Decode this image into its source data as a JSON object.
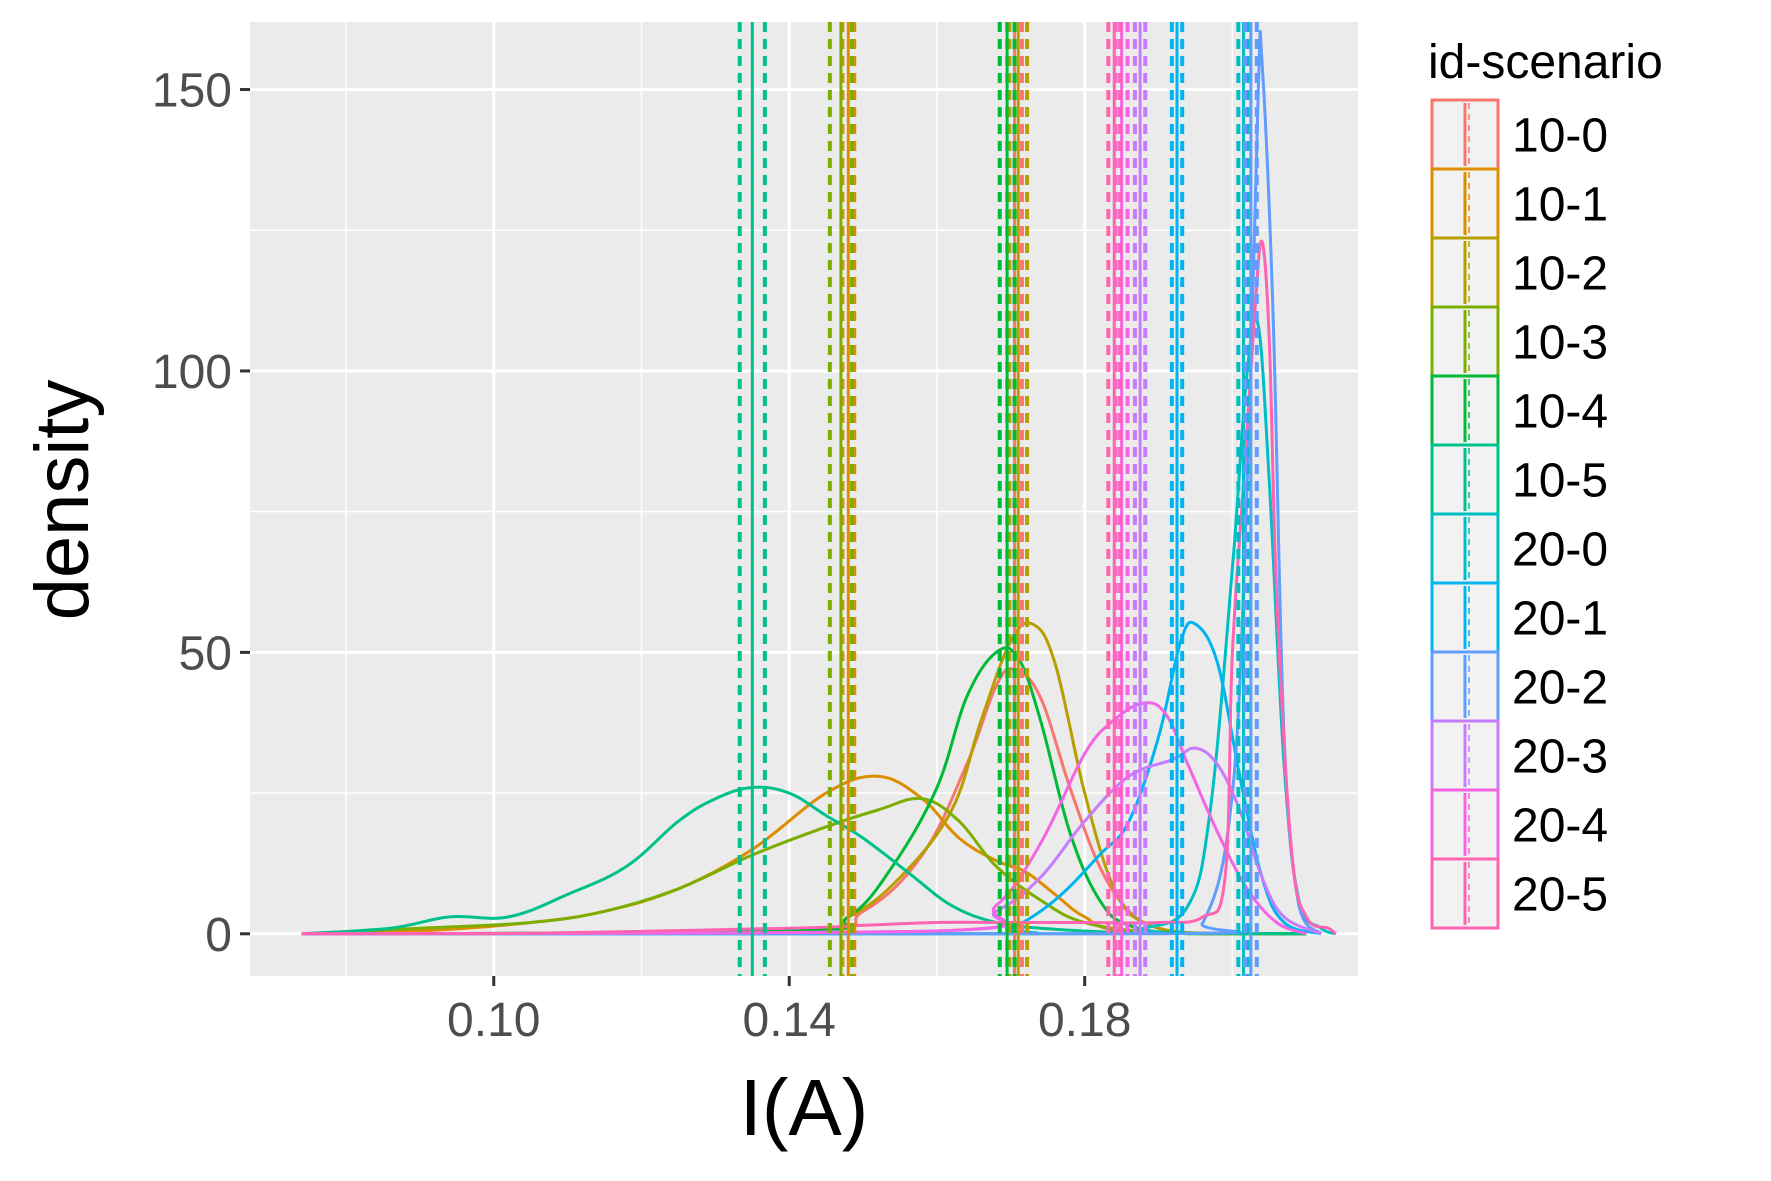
{
  "chart_data": {
    "type": "line",
    "subtype": "density",
    "xlabel": "I(A)",
    "ylabel": "density",
    "xlim": [
      0.067,
      0.217
    ],
    "ylim": [
      -7.5,
      162
    ],
    "x_ticks": [
      0.1,
      0.14,
      0.18
    ],
    "x_tick_labels": [
      "0.10",
      "0.14",
      "0.18"
    ],
    "y_ticks": [
      0,
      50,
      100,
      150
    ],
    "y_tick_labels": [
      "0",
      "50",
      "100",
      "150"
    ],
    "grid": true,
    "legend": {
      "title": "id-scenario",
      "position": "right"
    },
    "series": [
      {
        "name": "10-0",
        "color": "#F8766D",
        "mean": 0.1705,
        "ci": [
          0.1695,
          0.1715
        ],
        "points": [
          [
            0.074,
            0
          ],
          [
            0.14,
            0.5
          ],
          [
            0.15,
            4
          ],
          [
            0.158,
            14
          ],
          [
            0.164,
            30
          ],
          [
            0.168,
            44
          ],
          [
            0.1705,
            47
          ],
          [
            0.174,
            42
          ],
          [
            0.178,
            26
          ],
          [
            0.182,
            12
          ],
          [
            0.186,
            4
          ],
          [
            0.19,
            1
          ],
          [
            0.196,
            0
          ],
          [
            0.21,
            0
          ]
        ]
      },
      {
        "name": "10-1",
        "color": "#DE8C00",
        "mean": 0.148,
        "ci": [
          0.1472,
          0.1488
        ],
        "points": [
          [
            0.074,
            0
          ],
          [
            0.09,
            0.5
          ],
          [
            0.105,
            2
          ],
          [
            0.115,
            4
          ],
          [
            0.125,
            8
          ],
          [
            0.135,
            15
          ],
          [
            0.145,
            25
          ],
          [
            0.152,
            28
          ],
          [
            0.158,
            24
          ],
          [
            0.163,
            17
          ],
          [
            0.168,
            13
          ],
          [
            0.172,
            11
          ],
          [
            0.176,
            7
          ],
          [
            0.18,
            3
          ],
          [
            0.186,
            0.5
          ],
          [
            0.21,
            0
          ]
        ]
      },
      {
        "name": "10-2",
        "color": "#B79F00",
        "mean": 0.171,
        "ci": [
          0.1698,
          0.1722
        ],
        "points": [
          [
            0.074,
            0
          ],
          [
            0.14,
            0.5
          ],
          [
            0.148,
            3
          ],
          [
            0.155,
            10
          ],
          [
            0.162,
            22
          ],
          [
            0.166,
            38
          ],
          [
            0.17,
            52
          ],
          [
            0.173,
            55
          ],
          [
            0.176,
            48
          ],
          [
            0.18,
            25
          ],
          [
            0.184,
            8
          ],
          [
            0.188,
            2
          ],
          [
            0.196,
            0
          ],
          [
            0.21,
            0
          ]
        ]
      },
      {
        "name": "10-3",
        "color": "#7CAE00",
        "mean": 0.147,
        "ci": [
          0.1455,
          0.1485
        ],
        "points": [
          [
            0.074,
            0
          ],
          [
            0.09,
            1
          ],
          [
            0.105,
            2
          ],
          [
            0.115,
            4
          ],
          [
            0.125,
            8
          ],
          [
            0.135,
            14
          ],
          [
            0.145,
            19
          ],
          [
            0.152,
            22
          ],
          [
            0.158,
            24
          ],
          [
            0.163,
            20
          ],
          [
            0.168,
            12
          ],
          [
            0.174,
            6
          ],
          [
            0.18,
            2
          ],
          [
            0.19,
            0.3
          ],
          [
            0.21,
            0
          ]
        ]
      },
      {
        "name": "10-4",
        "color": "#00BA38",
        "mean": 0.1695,
        "ci": [
          0.1685,
          0.1705
        ],
        "points": [
          [
            0.074,
            0
          ],
          [
            0.14,
            0.5
          ],
          [
            0.148,
            3
          ],
          [
            0.154,
            12
          ],
          [
            0.16,
            26
          ],
          [
            0.164,
            42
          ],
          [
            0.168,
            50
          ],
          [
            0.171,
            49
          ],
          [
            0.174,
            38
          ],
          [
            0.178,
            18
          ],
          [
            0.182,
            6
          ],
          [
            0.186,
            1.5
          ],
          [
            0.194,
            0
          ],
          [
            0.21,
            0
          ]
        ]
      },
      {
        "name": "10-5",
        "color": "#00C08B",
        "mean": 0.135,
        "ci": [
          0.1333,
          0.1367
        ],
        "points": [
          [
            0.074,
            0
          ],
          [
            0.086,
            1
          ],
          [
            0.094,
            3
          ],
          [
            0.102,
            3
          ],
          [
            0.11,
            7
          ],
          [
            0.118,
            12
          ],
          [
            0.125,
            20
          ],
          [
            0.13,
            24
          ],
          [
            0.135,
            26
          ],
          [
            0.14,
            25
          ],
          [
            0.145,
            21
          ],
          [
            0.15,
            17
          ],
          [
            0.156,
            11
          ],
          [
            0.162,
            5
          ],
          [
            0.168,
            2
          ],
          [
            0.174,
            1
          ],
          [
            0.186,
            0.2
          ],
          [
            0.21,
            0
          ]
        ]
      },
      {
        "name": "20-0",
        "color": "#00BFC4",
        "mean": 0.2015,
        "ci": [
          0.2008,
          0.2022
        ],
        "points": [
          [
            0.074,
            0
          ],
          [
            0.18,
            0
          ],
          [
            0.188,
            1
          ],
          [
            0.194,
            5
          ],
          [
            0.197,
            22
          ],
          [
            0.2,
            65
          ],
          [
            0.202,
            100
          ],
          [
            0.2035,
            108
          ],
          [
            0.205,
            80
          ],
          [
            0.207,
            30
          ],
          [
            0.209,
            6
          ],
          [
            0.212,
            1
          ],
          [
            0.214,
            0
          ]
        ]
      },
      {
        "name": "20-1",
        "color": "#00B4F0",
        "mean": 0.1925,
        "ci": [
          0.1918,
          0.1932
        ],
        "points": [
          [
            0.074,
            0
          ],
          [
            0.165,
            0
          ],
          [
            0.17,
            1
          ],
          [
            0.176,
            6
          ],
          [
            0.182,
            14
          ],
          [
            0.186,
            20
          ],
          [
            0.19,
            35
          ],
          [
            0.193,
            52
          ],
          [
            0.195,
            55
          ],
          [
            0.198,
            48
          ],
          [
            0.201,
            28
          ],
          [
            0.204,
            10
          ],
          [
            0.207,
            2
          ],
          [
            0.212,
            0
          ]
        ]
      },
      {
        "name": "20-2",
        "color": "#619CFF",
        "mean": 0.2025,
        "ci": [
          0.2017,
          0.2033
        ],
        "points": [
          [
            0.074,
            0
          ],
          [
            0.19,
            0
          ],
          [
            0.196,
            2
          ],
          [
            0.2,
            25
          ],
          [
            0.202,
            80
          ],
          [
            0.2035,
            150
          ],
          [
            0.204,
            155
          ],
          [
            0.2055,
            110
          ],
          [
            0.207,
            35
          ],
          [
            0.209,
            5
          ],
          [
            0.212,
            0
          ]
        ]
      },
      {
        "name": "20-3",
        "color": "#C77CFF",
        "mean": 0.1875,
        "ci": [
          0.1868,
          0.1882
        ],
        "points": [
          [
            0.074,
            0
          ],
          [
            0.16,
            0.5
          ],
          [
            0.168,
            4
          ],
          [
            0.174,
            10
          ],
          [
            0.18,
            20
          ],
          [
            0.186,
            28
          ],
          [
            0.192,
            31
          ],
          [
            0.195,
            33
          ],
          [
            0.198,
            30
          ],
          [
            0.201,
            22
          ],
          [
            0.204,
            10
          ],
          [
            0.207,
            3
          ],
          [
            0.212,
            0
          ]
        ]
      },
      {
        "name": "20-4",
        "color": "#F564E3",
        "mean": 0.185,
        "ci": [
          0.1842,
          0.1858
        ],
        "points": [
          [
            0.074,
            0
          ],
          [
            0.16,
            0.5
          ],
          [
            0.168,
            5
          ],
          [
            0.174,
            16
          ],
          [
            0.18,
            32
          ],
          [
            0.184,
            38
          ],
          [
            0.188,
            41
          ],
          [
            0.191,
            39
          ],
          [
            0.194,
            30
          ],
          [
            0.198,
            18
          ],
          [
            0.202,
            8
          ],
          [
            0.206,
            2
          ],
          [
            0.21,
            0
          ]
        ]
      },
      {
        "name": "20-5",
        "color": "#FF64B0",
        "mean": 0.184,
        "ci": [
          0.1832,
          0.1848
        ],
        "points": [
          [
            0.074,
            0
          ],
          [
            0.1,
            0
          ],
          [
            0.14,
            1
          ],
          [
            0.15,
            1.5
          ],
          [
            0.16,
            2
          ],
          [
            0.17,
            2
          ],
          [
            0.18,
            2
          ],
          [
            0.19,
            2
          ],
          [
            0.196,
            3
          ],
          [
            0.199,
            10
          ],
          [
            0.2,
            50
          ],
          [
            0.2015,
            80
          ],
          [
            0.203,
            110
          ],
          [
            0.204,
            123
          ],
          [
            0.205,
            105
          ],
          [
            0.206,
            60
          ],
          [
            0.208,
            15
          ],
          [
            0.21,
            3
          ],
          [
            0.213,
            1
          ],
          [
            0.214,
            0
          ]
        ]
      }
    ]
  }
}
